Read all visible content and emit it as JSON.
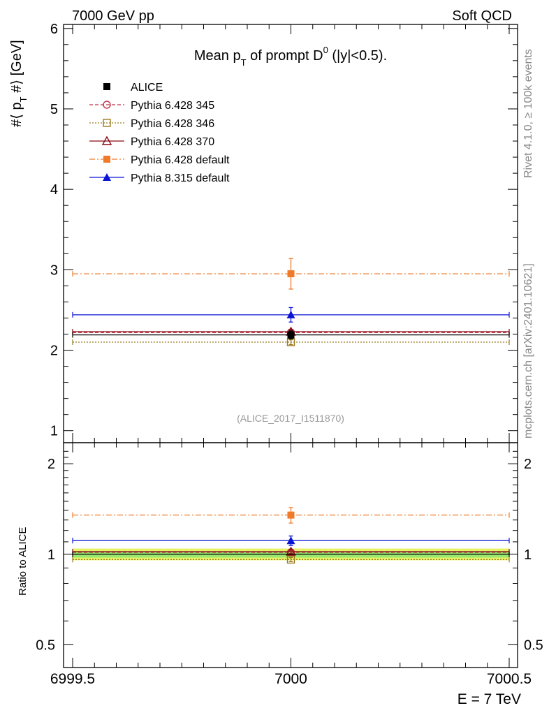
{
  "header": {
    "left": "7000 GeV pp",
    "right": "Soft QCD"
  },
  "side_labels": {
    "rivet": "Rivet 4.1.0, ≥ 100k events",
    "mcplots": "mcplots.cern.ch [arXiv:2401.10621]"
  },
  "reference": "(ALICE_2017_I1511870)",
  "chart_data": [
    {
      "type": "scatter",
      "title": "Mean p_T of prompt D^0 (|y|<0.5).",
      "title_parts": {
        "pre": "Mean p",
        "sub": "T",
        "mid": " of prompt D",
        "sup": "0",
        "post": " (|y|<0.5)."
      },
      "ylabel": "#⟨ p_T #⟩ [GeV]",
      "ylabel_parts": {
        "pre": "#⟨ p",
        "sub": "T",
        "post": " #⟩ [GeV]"
      },
      "xlabel": "E = 7 TeV",
      "xlim": [
        6999.5,
        7000.5
      ],
      "ylim": [
        0.85,
        6.05
      ],
      "x_ticks": [
        "6999.5",
        "7000",
        "7000.5"
      ],
      "y_ticks": [
        "1",
        "2",
        "3",
        "4",
        "5",
        "6"
      ],
      "series": [
        {
          "name": "ALICE",
          "color": "#000000",
          "marker": "square",
          "dash": "",
          "x": [
            7000
          ],
          "y": [
            2.19
          ],
          "yerr": [
            0.05
          ]
        },
        {
          "name": "Pythia 6.428 345",
          "color": "#c1344c",
          "marker": "circle-open",
          "dash": "5,3",
          "x": [
            7000
          ],
          "y": [
            2.22
          ],
          "yerr": [
            0.03
          ]
        },
        {
          "name": "Pythia 6.428 346",
          "color": "#9b7a1e",
          "marker": "square-open",
          "dash": "2,2",
          "x": [
            7000
          ],
          "y": [
            2.1
          ],
          "yerr": [
            0.03
          ]
        },
        {
          "name": "Pythia 6.428 370",
          "color": "#8b0a14",
          "marker": "triangle-open",
          "dash": "",
          "x": [
            7000
          ],
          "y": [
            2.23
          ],
          "yerr": [
            0.03
          ]
        },
        {
          "name": "Pythia 6.428 default",
          "color": "#f07a2a",
          "marker": "square",
          "dash": "8,3,2,3",
          "x": [
            7000
          ],
          "y": [
            2.95
          ],
          "yerr": [
            0.19
          ]
        },
        {
          "name": "Pythia 8.315 default",
          "color": "#0a14d6",
          "marker": "triangle",
          "dash": "",
          "x": [
            7000
          ],
          "y": [
            2.44
          ],
          "yerr": [
            0.09
          ]
        }
      ]
    },
    {
      "type": "scatter",
      "title": "",
      "ylabel": "Ratio to ALICE",
      "xlim": [
        6999.5,
        7000.5
      ],
      "ylim": [
        0.42,
        2.35
      ],
      "y_ticks": [
        "0.5",
        "1",
        "2"
      ],
      "band": {
        "outer": [
          0.955,
          1.045
        ],
        "inner": [
          0.975,
          1.025
        ]
      },
      "series": [
        {
          "name": "ALICE",
          "color": "#000000",
          "marker": "none",
          "dash": "",
          "x": [
            7000
          ],
          "y": [
            1.0
          ],
          "yerr": [
            0.0
          ]
        },
        {
          "name": "Pythia 6.428 345",
          "color": "#c1344c",
          "marker": "circle-open",
          "dash": "5,3",
          "x": [
            7000
          ],
          "y": [
            1.015
          ],
          "yerr": [
            0.015
          ]
        },
        {
          "name": "Pythia 6.428 346",
          "color": "#9b7a1e",
          "marker": "square-open",
          "dash": "2,2",
          "x": [
            7000
          ],
          "y": [
            0.96
          ],
          "yerr": [
            0.015
          ]
        },
        {
          "name": "Pythia 6.428 370",
          "color": "#8b0a14",
          "marker": "triangle-open",
          "dash": "",
          "x": [
            7000
          ],
          "y": [
            1.02
          ],
          "yerr": [
            0.015
          ]
        },
        {
          "name": "Pythia 6.428 default",
          "color": "#f07a2a",
          "marker": "square",
          "dash": "8,3,2,3",
          "x": [
            7000
          ],
          "y": [
            1.35
          ],
          "yerr": [
            0.08
          ]
        },
        {
          "name": "Pythia 8.315 default",
          "color": "#0a14d6",
          "marker": "triangle",
          "dash": "",
          "x": [
            7000
          ],
          "y": [
            1.11
          ],
          "yerr": [
            0.04
          ]
        }
      ]
    }
  ]
}
